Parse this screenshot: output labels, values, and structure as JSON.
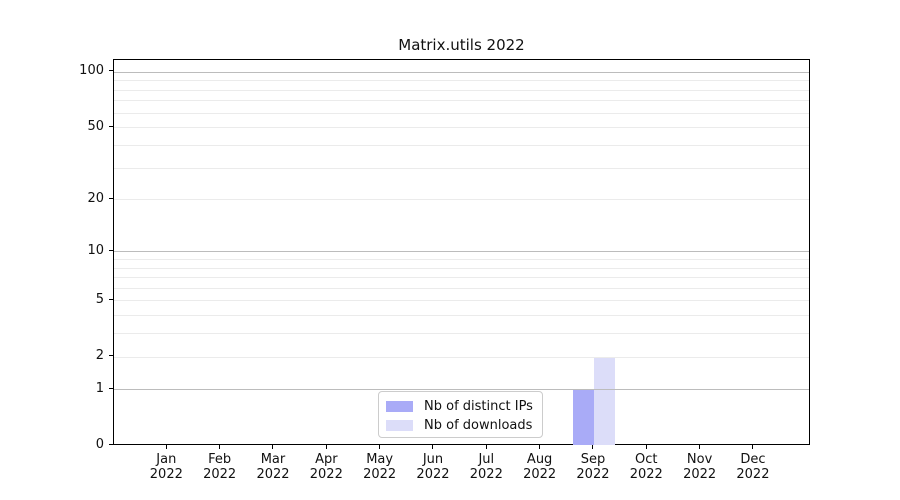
{
  "chart_data": {
    "type": "bar",
    "title": "Matrix.utils 2022",
    "x_categories": [
      {
        "month": "Jan",
        "year": "2022"
      },
      {
        "month": "Feb",
        "year": "2022"
      },
      {
        "month": "Mar",
        "year": "2022"
      },
      {
        "month": "Apr",
        "year": "2022"
      },
      {
        "month": "May",
        "year": "2022"
      },
      {
        "month": "Jun",
        "year": "2022"
      },
      {
        "month": "Jul",
        "year": "2022"
      },
      {
        "month": "Aug",
        "year": "2022"
      },
      {
        "month": "Sep",
        "year": "2022"
      },
      {
        "month": "Oct",
        "year": "2022"
      },
      {
        "month": "Nov",
        "year": "2022"
      },
      {
        "month": "Dec",
        "year": "2022"
      }
    ],
    "series": [
      {
        "name": "Nb of distinct IPs",
        "color": "#a9abf7",
        "values": [
          0,
          0,
          0,
          0,
          0,
          0,
          0,
          0,
          1,
          0,
          0,
          0
        ]
      },
      {
        "name": "Nb of downloads",
        "color": "#dcddf9",
        "values": [
          0,
          0,
          0,
          0,
          0,
          0,
          0,
          0,
          2,
          0,
          0,
          0
        ]
      }
    ],
    "y_axis": {
      "scale": "log1p",
      "ylim": [
        0,
        116
      ],
      "tick_values": [
        0,
        1,
        2,
        5,
        10,
        20,
        50,
        100
      ],
      "tick_labels": [
        "0",
        "1",
        "2",
        "5",
        "10",
        "20",
        "50",
        "100"
      ],
      "major_gridlines": [
        1,
        10,
        100
      ],
      "minor_gridlines": [
        2,
        3,
        4,
        5,
        6,
        7,
        8,
        9,
        20,
        30,
        40,
        50,
        60,
        70,
        80,
        90
      ]
    },
    "grid": "on",
    "legend": {
      "position": "lower center",
      "entries": [
        "Nb of distinct IPs",
        "Nb of downloads"
      ]
    },
    "bar_width_units": 0.4,
    "colors": {
      "major_grid": "#bcbcbc",
      "minor_grid": "#ebebeb",
      "spine": "#000000",
      "text": "#111111"
    }
  }
}
